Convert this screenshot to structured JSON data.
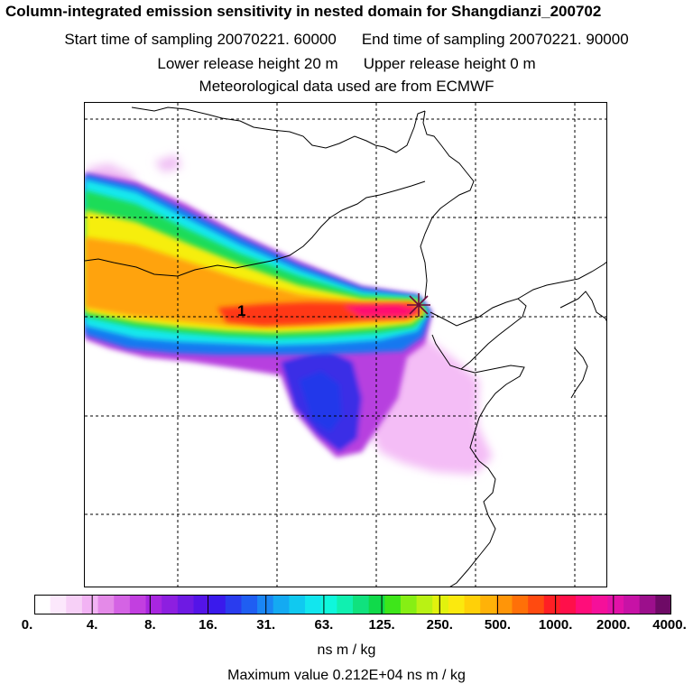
{
  "header": {
    "title": "Column-integrated emission sensitivity in nested domain for Shangdianzi_200702",
    "start_label": "Start time of sampling 20070221. 60000",
    "end_label": "End time of sampling 20070221. 90000",
    "lower_label": "Lower release height   20 m",
    "upper_label": "Upper release height    0 m",
    "met_label": "Meteorological data used are from ECMWF"
  },
  "map": {
    "release_label": "1"
  },
  "colorbar": {
    "ticks": [
      "0.",
      "4.",
      "8.",
      "16.",
      "31.",
      "63.",
      "125.",
      "250.",
      "500.",
      "1000.",
      "2000.",
      "4000."
    ],
    "colors": [
      "#ffffff",
      "#fce8fc",
      "#f7d0f7",
      "#f2b3f4",
      "#e48ae8",
      "#d463e4",
      "#c23fe0",
      "#a826e0",
      "#8d1fe0",
      "#6e1ae3",
      "#5414e8",
      "#3a1aec",
      "#2a3cee",
      "#1f5ef2",
      "#1a86f4",
      "#14aaf2",
      "#10c9f0",
      "#12e6ee",
      "#0ff7dc",
      "#10f0b0",
      "#10e27e",
      "#10da4a",
      "#3ee61a",
      "#86ef14",
      "#b9f214",
      "#e2f20e",
      "#fbe90e",
      "#ffd008",
      "#ffb208",
      "#ff9508",
      "#ff7008",
      "#ff4a10",
      "#ff1f24",
      "#ff0f4a",
      "#ff0d7a",
      "#f5109a",
      "#e212a8",
      "#c712a6",
      "#9c0f8c",
      "#6e0a66"
    ],
    "units": "ns m / kg",
    "max_value": "Maximum value  0.212E+04 ns m / kg"
  }
}
